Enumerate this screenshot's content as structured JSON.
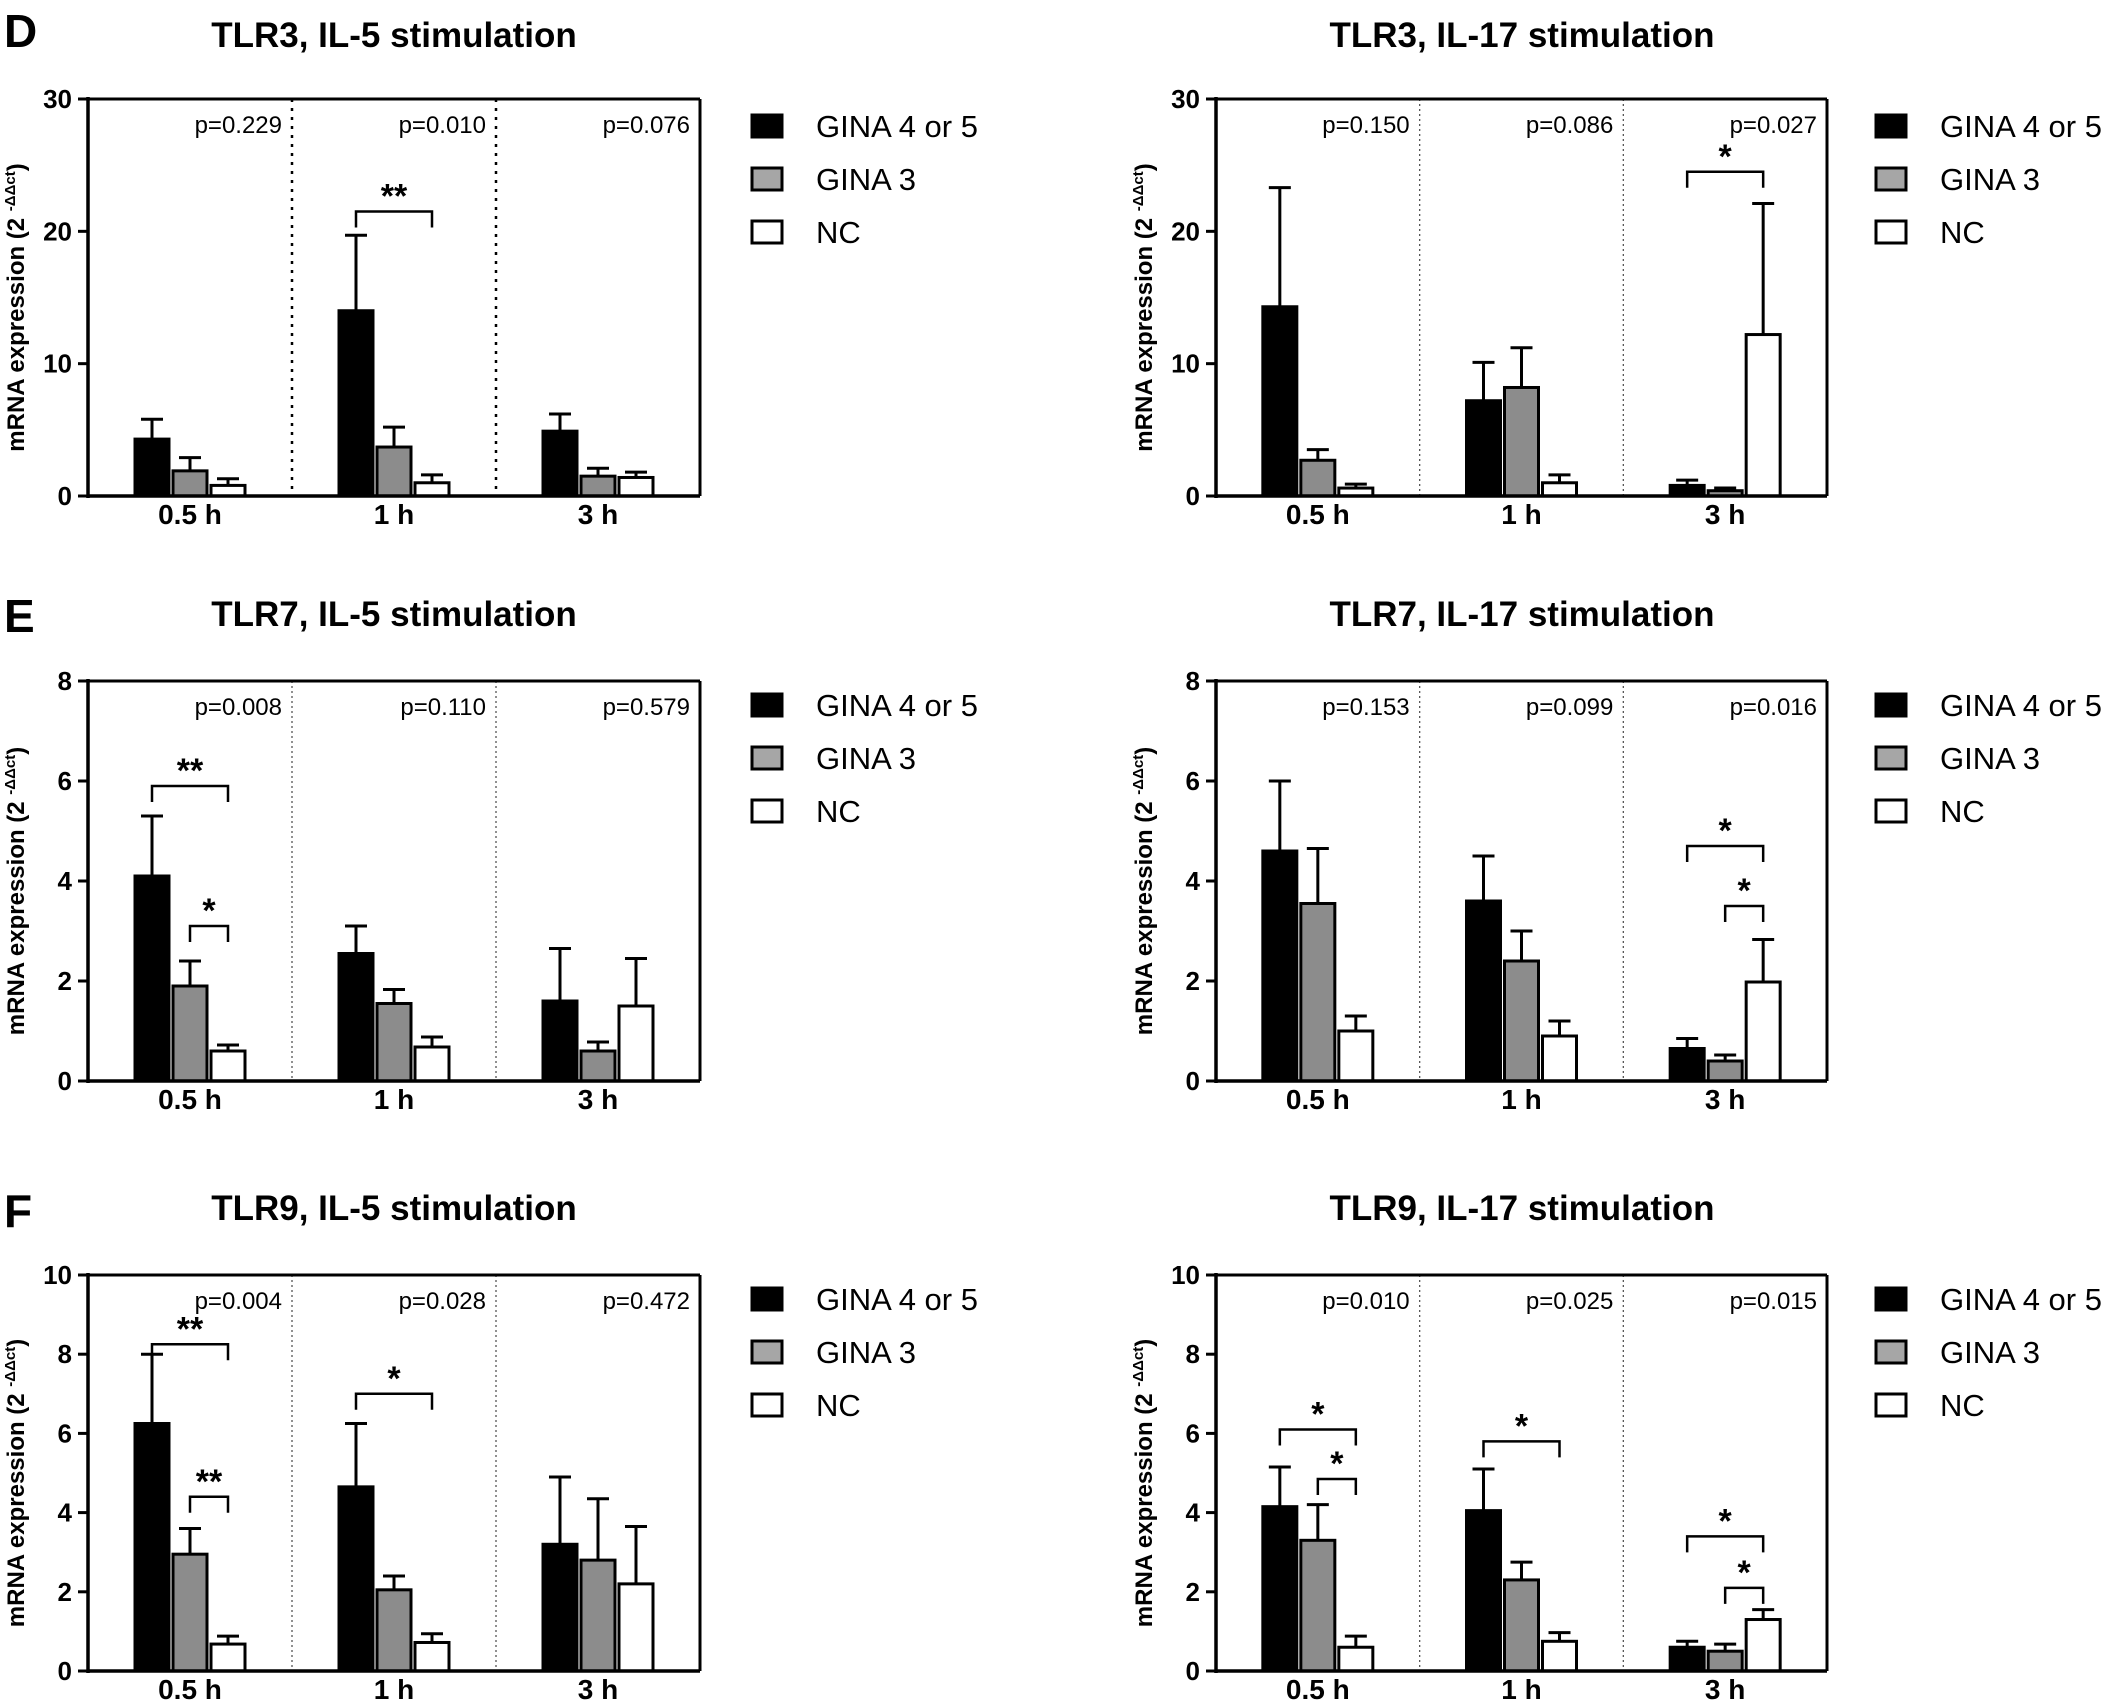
{
  "panel_letters": {
    "d": "D",
    "e": "E",
    "f": "F"
  },
  "legend_labels": [
    "GINA 4 or 5",
    "GINA 3",
    "NC"
  ],
  "y_axis_label_main": "mRNA expression (2",
  "y_axis_label_sup": "-ΔΔct",
  "y_axis_label_close": ")",
  "colors": {
    "GINA 4 or 5": "#000000",
    "GINA 3": "#8c8c8c",
    "NC": "#ffffff",
    "stroke": "#000000"
  },
  "chart_data": [
    {
      "panel": "D",
      "title": "TLR3, IL-5 stimulation",
      "type": "bar",
      "categories": [
        "0.5 h",
        "1 h",
        "3 h"
      ],
      "ylim": [
        0,
        30
      ],
      "yticks": [
        0,
        10,
        20,
        30
      ],
      "divider_style": "dotted-heavy",
      "series": [
        {
          "name": "GINA 4 or 5",
          "values": [
            4.3,
            14.0,
            4.9
          ],
          "errors": [
            1.5,
            5.7,
            1.3
          ]
        },
        {
          "name": "GINA 3",
          "values": [
            1.9,
            3.7,
            1.5
          ],
          "errors": [
            1.0,
            1.5,
            0.6
          ]
        },
        {
          "name": "NC",
          "values": [
            0.8,
            1.0,
            1.4
          ],
          "errors": [
            0.5,
            0.6,
            0.4
          ]
        }
      ],
      "p_values": [
        "p=0.229",
        "p=0.010",
        "p=0.076"
      ],
      "significance": [
        {
          "cat": 1,
          "from": 0,
          "to": 2,
          "y": 21.5,
          "label": "**"
        }
      ]
    },
    {
      "panel": "D",
      "title": "TLR3, IL-17 stimulation",
      "type": "bar",
      "categories": [
        "0.5 h",
        "1 h",
        "3 h"
      ],
      "ylim": [
        0,
        30
      ],
      "yticks": [
        0,
        10,
        20,
        30
      ],
      "divider_style": "dotted-light",
      "series": [
        {
          "name": "GINA 4 or 5",
          "values": [
            14.3,
            7.2,
            0.8
          ],
          "errors": [
            9.0,
            2.9,
            0.4
          ]
        },
        {
          "name": "GINA 3",
          "values": [
            2.7,
            8.2,
            0.4
          ],
          "errors": [
            0.8,
            3.0,
            0.2
          ]
        },
        {
          "name": "NC",
          "values": [
            0.6,
            1.0,
            12.2
          ],
          "errors": [
            0.3,
            0.6,
            9.9
          ]
        }
      ],
      "p_values": [
        "p=0.150",
        "p=0.086",
        "p=0.027"
      ],
      "significance": [
        {
          "cat": 2,
          "from": 0,
          "to": 2,
          "y": 24.5,
          "label": "*"
        }
      ]
    },
    {
      "panel": "E",
      "title": "TLR7, IL-5 stimulation",
      "type": "bar",
      "categories": [
        "0.5 h",
        "1 h",
        "3 h"
      ],
      "ylim": [
        0,
        8
      ],
      "yticks": [
        0,
        2,
        4,
        6,
        8
      ],
      "divider_style": "dotted-light",
      "series": [
        {
          "name": "GINA 4 or 5",
          "values": [
            4.1,
            2.55,
            1.6
          ],
          "errors": [
            1.2,
            0.55,
            1.05
          ]
        },
        {
          "name": "GINA 3",
          "values": [
            1.9,
            1.55,
            0.6
          ],
          "errors": [
            0.5,
            0.28,
            0.18
          ]
        },
        {
          "name": "NC",
          "values": [
            0.6,
            0.68,
            1.5
          ],
          "errors": [
            0.12,
            0.2,
            0.95
          ]
        }
      ],
      "p_values": [
        "p=0.008",
        "p=0.110",
        "p=0.579"
      ],
      "significance": [
        {
          "cat": 0,
          "from": 0,
          "to": 2,
          "y": 5.9,
          "label": "**"
        },
        {
          "cat": 0,
          "from": 1,
          "to": 2,
          "y": 3.1,
          "label": "*"
        }
      ]
    },
    {
      "panel": "E",
      "title": "TLR7, IL-17 stimulation",
      "type": "bar",
      "categories": [
        "0.5 h",
        "1 h",
        "3 h"
      ],
      "ylim": [
        0,
        8
      ],
      "yticks": [
        0,
        2,
        4,
        6,
        8
      ],
      "divider_style": "dotted-light",
      "series": [
        {
          "name": "GINA 4 or 5",
          "values": [
            4.6,
            3.6,
            0.65
          ],
          "errors": [
            1.4,
            0.9,
            0.2
          ]
        },
        {
          "name": "GINA 3",
          "values": [
            3.55,
            2.4,
            0.4
          ],
          "errors": [
            1.1,
            0.6,
            0.12
          ]
        },
        {
          "name": "NC",
          "values": [
            1.0,
            0.9,
            1.98
          ],
          "errors": [
            0.3,
            0.3,
            0.85
          ]
        }
      ],
      "p_values": [
        "p=0.153",
        "p=0.099",
        "p=0.016"
      ],
      "significance": [
        {
          "cat": 2,
          "from": 0,
          "to": 2,
          "y": 4.7,
          "label": "*"
        },
        {
          "cat": 2,
          "from": 1,
          "to": 2,
          "y": 3.5,
          "label": "*"
        }
      ]
    },
    {
      "panel": "F",
      "title": "TLR9, IL-5 stimulation",
      "type": "bar",
      "categories": [
        "0.5 h",
        "1 h",
        "3 h"
      ],
      "ylim": [
        0,
        10
      ],
      "yticks": [
        0,
        2,
        4,
        6,
        8,
        10
      ],
      "divider_style": "dotted-light",
      "series": [
        {
          "name": "GINA 4 or 5",
          "values": [
            6.25,
            4.65,
            3.2
          ],
          "errors": [
            1.75,
            1.6,
            1.7
          ]
        },
        {
          "name": "GINA 3",
          "values": [
            2.95,
            2.05,
            2.8
          ],
          "errors": [
            0.65,
            0.35,
            1.55
          ]
        },
        {
          "name": "NC",
          "values": [
            0.68,
            0.72,
            2.2
          ],
          "errors": [
            0.2,
            0.22,
            1.45
          ]
        }
      ],
      "p_values": [
        "p=0.004",
        "p=0.028",
        "p=0.472"
      ],
      "significance": [
        {
          "cat": 0,
          "from": 0,
          "to": 2,
          "y": 8.25,
          "label": "**"
        },
        {
          "cat": 0,
          "from": 1,
          "to": 2,
          "y": 4.4,
          "label": "**"
        },
        {
          "cat": 1,
          "from": 0,
          "to": 2,
          "y": 7.0,
          "label": "*"
        }
      ]
    },
    {
      "panel": "F",
      "title": "TLR9, IL-17 stimulation",
      "type": "bar",
      "categories": [
        "0.5 h",
        "1 h",
        "3 h"
      ],
      "ylim": [
        0,
        10
      ],
      "yticks": [
        0,
        2,
        4,
        6,
        8,
        10
      ],
      "divider_style": "dotted-light",
      "series": [
        {
          "name": "GINA 4 or 5",
          "values": [
            4.15,
            4.05,
            0.6
          ],
          "errors": [
            1.0,
            1.05,
            0.15
          ]
        },
        {
          "name": "GINA 3",
          "values": [
            3.3,
            2.3,
            0.5
          ],
          "errors": [
            0.9,
            0.45,
            0.18
          ]
        },
        {
          "name": "NC",
          "values": [
            0.6,
            0.75,
            1.3
          ],
          "errors": [
            0.28,
            0.22,
            0.25
          ]
        }
      ],
      "p_values": [
        "p=0.010",
        "p=0.025",
        "p=0.015"
      ],
      "significance": [
        {
          "cat": 0,
          "from": 0,
          "to": 2,
          "y": 6.1,
          "label": "*"
        },
        {
          "cat": 0,
          "from": 1,
          "to": 2,
          "y": 4.85,
          "label": "*"
        },
        {
          "cat": 1,
          "from": 0,
          "to": 2,
          "y": 5.8,
          "label": "*"
        },
        {
          "cat": 2,
          "from": 0,
          "to": 2,
          "y": 3.4,
          "label": "*"
        },
        {
          "cat": 2,
          "from": 1,
          "to": 2,
          "y": 2.1,
          "label": "*"
        }
      ]
    }
  ]
}
